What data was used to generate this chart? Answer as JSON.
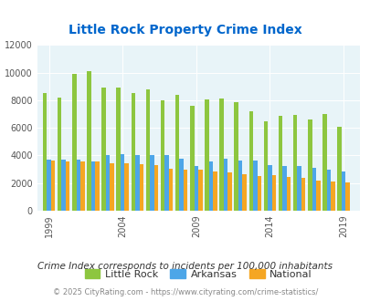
{
  "title": "Little Rock Property Crime Index",
  "years": [
    1999,
    2000,
    2001,
    2002,
    2003,
    2004,
    2005,
    2006,
    2007,
    2008,
    2009,
    2010,
    2011,
    2012,
    2013,
    2014,
    2015,
    2016,
    2017,
    2018,
    2019
  ],
  "little_rock": [
    8500,
    8200,
    9900,
    10100,
    8950,
    8900,
    8550,
    8800,
    8000,
    8400,
    7600,
    8050,
    8100,
    7900,
    7200,
    6450,
    6900,
    6950,
    6600,
    7000,
    6100
  ],
  "arkansas": [
    3700,
    3700,
    3700,
    3600,
    4050,
    4100,
    4000,
    4000,
    4000,
    3800,
    3250,
    3600,
    3800,
    3650,
    3650,
    3300,
    3250,
    3250,
    3100,
    2950,
    2850
  ],
  "national": [
    3650,
    3600,
    3600,
    3550,
    3450,
    3450,
    3350,
    3300,
    3050,
    2950,
    2950,
    2850,
    2750,
    2650,
    2500,
    2550,
    2450,
    2350,
    2200,
    2100,
    2050
  ],
  "bar_width": 0.28,
  "colors": {
    "little_rock": "#8dc63f",
    "arkansas": "#4da6e8",
    "national": "#f5a623"
  },
  "ylim": [
    0,
    12000
  ],
  "yticks": [
    0,
    2000,
    4000,
    6000,
    8000,
    10000,
    12000
  ],
  "xtick_labels": [
    "1999",
    "2004",
    "2009",
    "2014",
    "2019"
  ],
  "xtick_positions": [
    1999,
    2004,
    2009,
    2014,
    2019
  ],
  "background_color": "#e8f4f8",
  "title_color": "#0066cc",
  "subtitle": "Crime Index corresponds to incidents per 100,000 inhabitants",
  "footer": "© 2025 CityRating.com - https://www.cityrating.com/crime-statistics/",
  "legend_labels": [
    "Little Rock",
    "Arkansas",
    "National"
  ]
}
